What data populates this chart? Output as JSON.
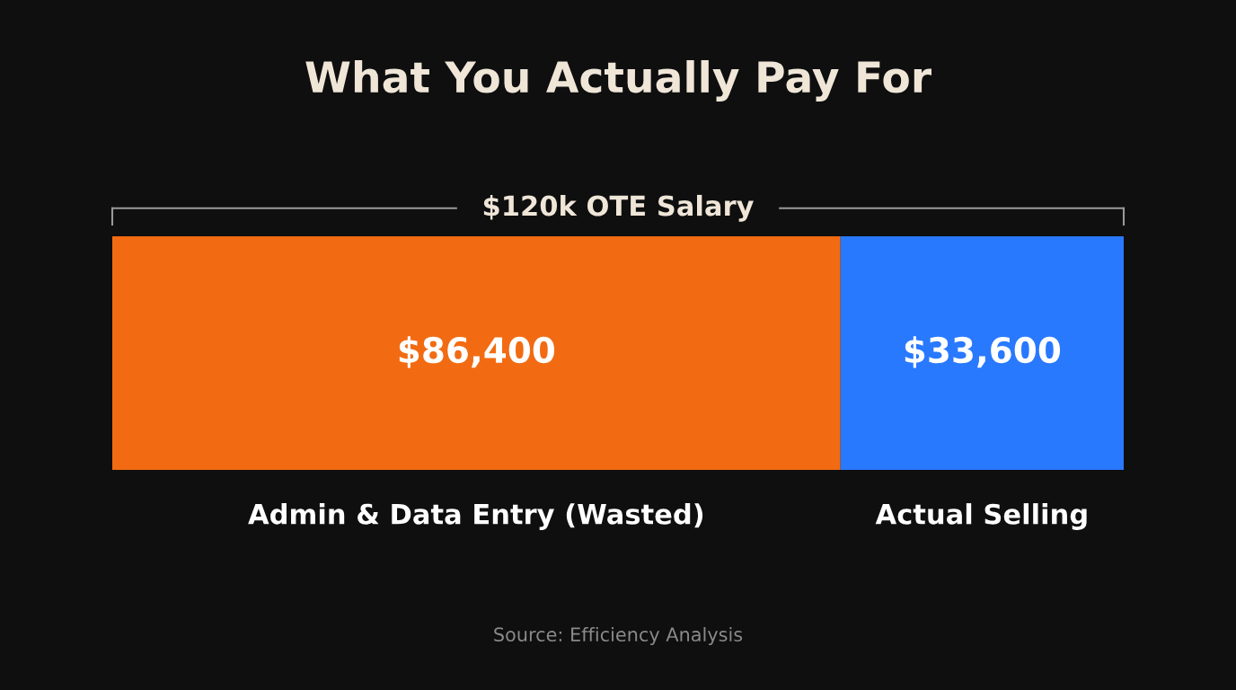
{
  "chart_data": {
    "type": "bar",
    "orientation": "horizontal",
    "stacked": true,
    "title": "What You Actually Pay For",
    "categories": [
      null
    ],
    "series": [
      {
        "name": "Admin & Data Entry (Wasted)",
        "color": "#f26b12",
        "values": [
          86400
        ],
        "value_labels": [
          "$86,400"
        ]
      },
      {
        "name": "Actual Selling",
        "color": "#2979ff",
        "values": [
          33600
        ],
        "value_labels": [
          "$33,600"
        ]
      }
    ],
    "xlim": [
      0,
      120000
    ],
    "annotations": [
      "$120k OTE Salary",
      "Source: Efficiency Analysis"
    ]
  }
}
